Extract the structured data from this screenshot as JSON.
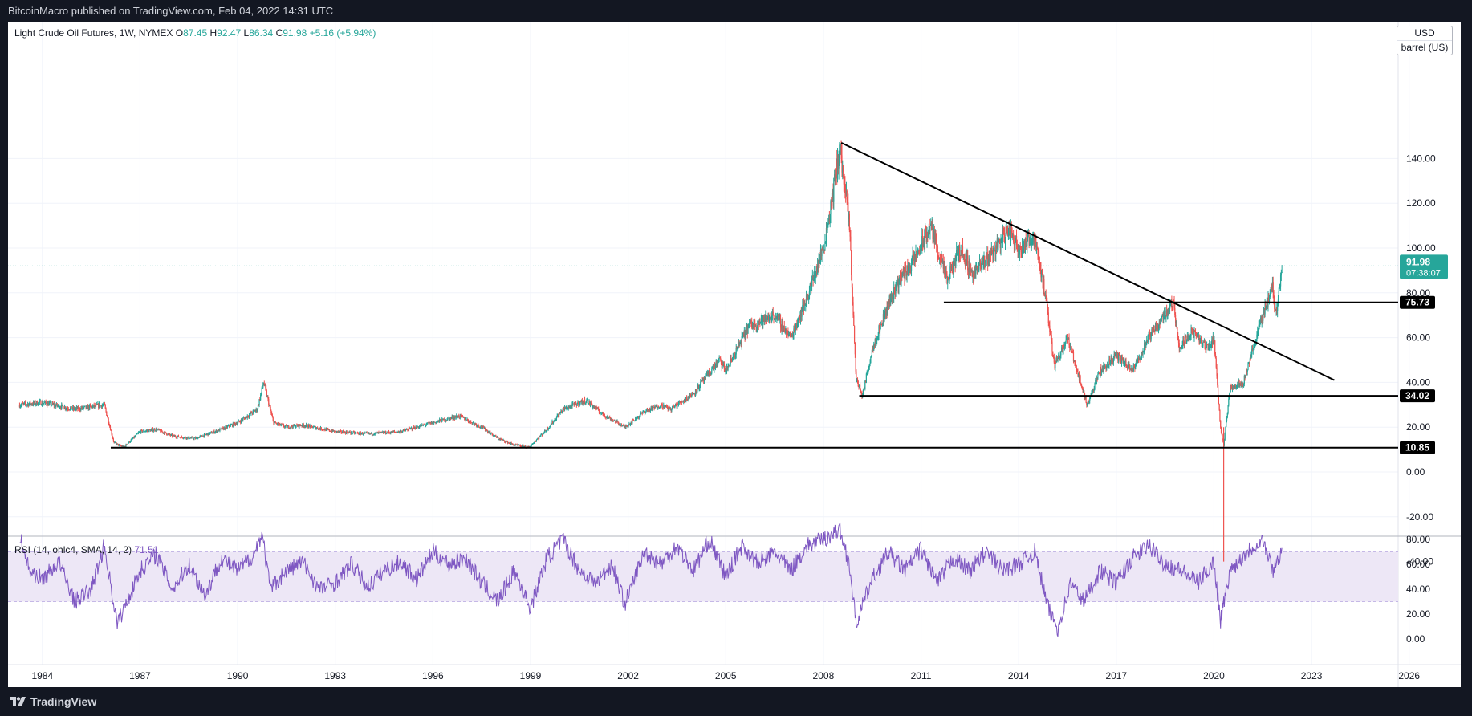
{
  "header": {
    "publisher_text": "BitcoinMacro published on TradingView.com, Feb 04, 2022 14:31 UTC"
  },
  "footer": {
    "brand": "TradingView"
  },
  "legend": {
    "symbol": "Light Crude Oil Futures, 1W, NYMEX",
    "o_label": "O",
    "o_value": "87.45",
    "h_label": "H",
    "h_value": "92.47",
    "l_label": "L",
    "l_value": "86.34",
    "c_label": "C",
    "c_value": "91.98",
    "change": "+5.16 (+5.94%)"
  },
  "currency": {
    "unit": "USD",
    "measure": "barrel (US)"
  },
  "rsi": {
    "label": "RSI (14, ohlc4, SMA, 14, 2)",
    "value": "71.51"
  },
  "colors": {
    "up": "#26a69a",
    "down": "#ef5350",
    "rsi": "#7e57c2",
    "rsi_band": "#ede7f6",
    "background": "#131722"
  },
  "chart_data": [
    {
      "type": "candlestick",
      "title": "Light Crude Oil Futures, 1W, NYMEX",
      "xlim": [
        1982.5,
        2026.5
      ],
      "ylim": [
        -50,
        150
      ],
      "x_ticks": [
        "1984",
        "1987",
        "1990",
        "1993",
        "1996",
        "1999",
        "2002",
        "2005",
        "2008",
        "2011",
        "2014",
        "2017",
        "2020",
        "2023",
        "2026"
      ],
      "y_ticks": [
        "140.00",
        "120.00",
        "100.00",
        "80.00",
        "60.00",
        "40.00",
        "20.00",
        "0.00",
        "-20.00",
        "-40.00"
      ],
      "last_price": {
        "value": 91.98,
        "label": "91.98",
        "countdown": "07:38:07"
      },
      "price": {
        "x": [
          1983.3,
          1984.0,
          1985.0,
          1985.9,
          1986.2,
          1986.5,
          1987.0,
          1987.5,
          1988.0,
          1988.7,
          1989.5,
          1990.0,
          1990.6,
          1990.8,
          1991.1,
          1991.5,
          1992.0,
          1993.0,
          1994.0,
          1995.0,
          1996.0,
          1996.8,
          1997.5,
          1998.0,
          1998.5,
          1998.95,
          1999.5,
          2000.0,
          2000.7,
          2001.2,
          2001.9,
          2002.5,
          2003.0,
          2003.3,
          2004.0,
          2004.8,
          2005.0,
          2005.7,
          2006.5,
          2007.0,
          2007.5,
          2008.0,
          2008.3,
          2008.5,
          2008.8,
          2009.0,
          2009.2,
          2009.5,
          2010.0,
          2010.3,
          2010.8,
          2011.3,
          2011.8,
          2012.2,
          2012.6,
          2013.0,
          2013.7,
          2014.0,
          2014.5,
          2014.8,
          2015.1,
          2015.5,
          2015.8,
          2016.1,
          2016.5,
          2017.0,
          2017.5,
          2018.0,
          2018.75,
          2018.95,
          2019.3,
          2019.8,
          2020.0,
          2020.2,
          2020.3,
          2020.5,
          2020.9,
          2021.2,
          2021.5,
          2021.8,
          2021.9,
          2022.1
        ],
        "y": [
          30,
          31,
          28,
          30,
          13,
          11,
          18,
          19,
          16,
          15,
          19,
          22,
          28,
          40,
          22,
          20,
          21,
          18,
          17,
          18,
          22,
          25,
          20,
          15,
          12,
          11,
          19,
          28,
          32,
          26,
          20,
          27,
          30,
          28,
          35,
          50,
          45,
          65,
          70,
          60,
          78,
          100,
          125,
          145,
          110,
          42,
          34,
          55,
          75,
          85,
          95,
          110,
          85,
          100,
          88,
          95,
          108,
          100,
          105,
          80,
          48,
          60,
          45,
          30,
          45,
          52,
          45,
          60,
          76,
          55,
          63,
          55,
          60,
          20,
          12,
          38,
          40,
          55,
          70,
          83,
          70,
          92
        ],
        "low_spike": {
          "x": 2020.3,
          "y": -40
        }
      },
      "annotations": [
        {
          "type": "horizontal_level",
          "label": "75.73",
          "value": 75.73,
          "x_start": 2011.7,
          "x_end": 2026.5
        },
        {
          "type": "horizontal_level",
          "label": "34.02",
          "value": 34.02,
          "x_start": 2009.1,
          "x_end": 2026.5
        },
        {
          "type": "horizontal_level",
          "label": "10.85",
          "value": 10.85,
          "x_start": 1986.1,
          "x_end": 2026.5
        },
        {
          "type": "trendline",
          "x": [
            2008.55,
            2023.7
          ],
          "y": [
            147,
            41
          ]
        }
      ]
    },
    {
      "type": "line",
      "title": "RSI (14, ohlc4, SMA, 14, 2)",
      "ylim": [
        0,
        90
      ],
      "y_ticks": [
        "80.00",
        "60.00",
        "40.00",
        "20.00",
        "0.00"
      ],
      "band": [
        30,
        70
      ],
      "series": [
        {
          "name": "RSI",
          "x": [
            1983.3,
            1983.6,
            1984.0,
            1984.5,
            1985.0,
            1985.5,
            1985.9,
            1986.3,
            1986.6,
            1987.0,
            1987.5,
            1988.0,
            1988.5,
            1989.0,
            1989.5,
            1990.0,
            1990.5,
            1990.75,
            1991.0,
            1991.5,
            1992.0,
            1992.5,
            1993.0,
            1993.5,
            1994.0,
            1994.5,
            1995.0,
            1995.5,
            1996.0,
            1996.5,
            1997.0,
            1997.5,
            1998.0,
            1998.5,
            1999.0,
            1999.5,
            2000.0,
            2000.5,
            2001.0,
            2001.5,
            2001.9,
            2002.5,
            2003.0,
            2003.5,
            2004.0,
            2004.5,
            2005.0,
            2005.5,
            2006.0,
            2006.5,
            2007.0,
            2007.5,
            2008.0,
            2008.5,
            2008.8,
            2009.0,
            2009.5,
            2010.0,
            2010.5,
            2011.0,
            2011.5,
            2012.0,
            2012.5,
            2013.0,
            2013.5,
            2014.0,
            2014.5,
            2014.9,
            2015.2,
            2015.6,
            2016.0,
            2016.5,
            2017.0,
            2017.5,
            2018.0,
            2018.5,
            2019.0,
            2019.5,
            2020.0,
            2020.2,
            2020.5,
            2021.0,
            2021.5,
            2021.8,
            2022.1
          ],
          "y": [
            83,
            55,
            48,
            62,
            30,
            40,
            75,
            12,
            30,
            55,
            68,
            40,
            60,
            35,
            65,
            55,
            68,
            85,
            40,
            55,
            62,
            40,
            45,
            60,
            42,
            55,
            62,
            48,
            70,
            60,
            65,
            45,
            30,
            55,
            25,
            65,
            80,
            55,
            45,
            60,
            28,
            70,
            60,
            75,
            55,
            80,
            50,
            75,
            60,
            70,
            55,
            75,
            80,
            88,
            60,
            12,
            48,
            70,
            55,
            72,
            45,
            65,
            55,
            70,
            55,
            60,
            70,
            25,
            8,
            45,
            30,
            55,
            45,
            65,
            75,
            60,
            55,
            45,
            62,
            15,
            55,
            70,
            80,
            55,
            71.51
          ]
        }
      ]
    }
  ]
}
